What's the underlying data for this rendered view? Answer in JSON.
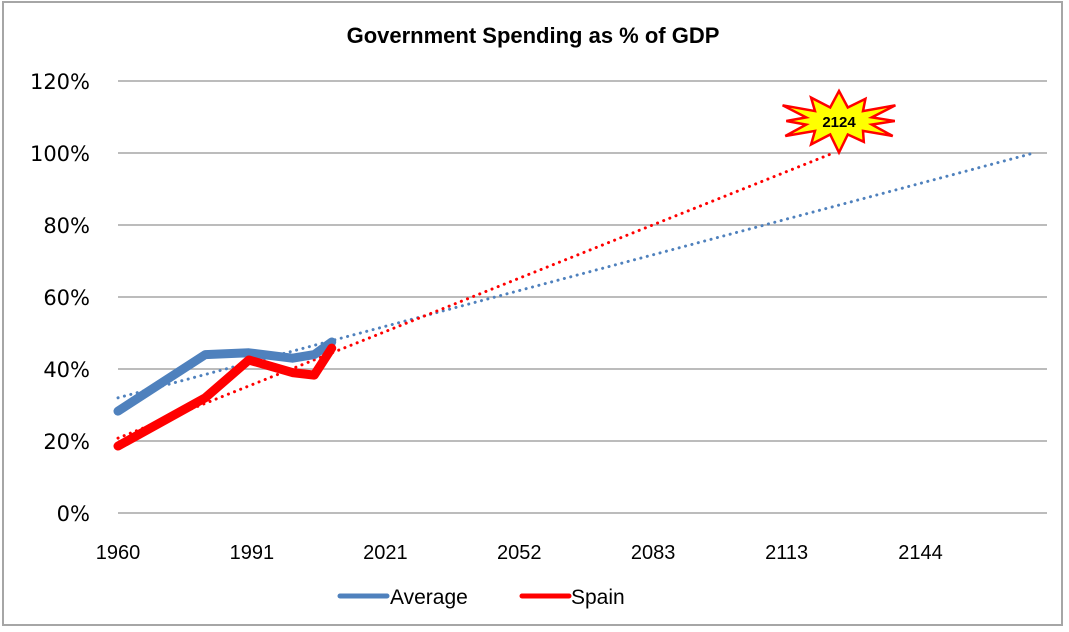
{
  "chart_data": {
    "type": "line",
    "title": "Government Spending as % of GDP",
    "xlabel": "",
    "ylabel": "",
    "xlim": [
      1960,
      2173
    ],
    "ylim": [
      0,
      1.2
    ],
    "grid": true,
    "x_tick_labels": [
      "1960",
      "1991",
      "2021",
      "2052",
      "2083",
      "2113",
      "2144"
    ],
    "x_tick_values": [
      1960,
      1990.7,
      2021.3,
      2052,
      2082.7,
      2113.3,
      2144
    ],
    "y_tick_labels": [
      "0%",
      "20%",
      "40%",
      "60%",
      "80%",
      "100%",
      "120%"
    ],
    "y_tick_values": [
      0,
      0.2,
      0.4,
      0.6,
      0.8,
      1.0,
      1.2
    ],
    "legend_position": "bottom",
    "series": [
      {
        "name": "Average",
        "color": "#4f81bd",
        "x": [
          1960,
          1980,
          1990,
          2000,
          2005,
          2009
        ],
        "values": [
          0.283,
          0.44,
          0.445,
          0.43,
          0.44,
          0.475
        ]
      },
      {
        "name": "Spain",
        "color": "#ff0000",
        "x": [
          1960,
          1980,
          1990,
          2000,
          2005,
          2009
        ],
        "values": [
          0.186,
          0.32,
          0.425,
          0.39,
          0.383,
          0.458
        ]
      }
    ],
    "trendlines": [
      {
        "name": "Average trend",
        "color": "#4f81bd",
        "style": "dotted",
        "x": [
          1960,
          2170
        ],
        "values": [
          0.32,
          1.0
        ]
      },
      {
        "name": "Spain trend",
        "color": "#ff0000",
        "style": "dotted",
        "x": [
          1960,
          2124
        ],
        "values": [
          0.208,
          1.0
        ]
      }
    ],
    "annotations": [
      {
        "text": "2124",
        "shape": "starburst",
        "fill": "#ffff00",
        "stroke": "#ff0000",
        "anchor_x": 2124,
        "anchor_y": 1.0
      }
    ]
  }
}
